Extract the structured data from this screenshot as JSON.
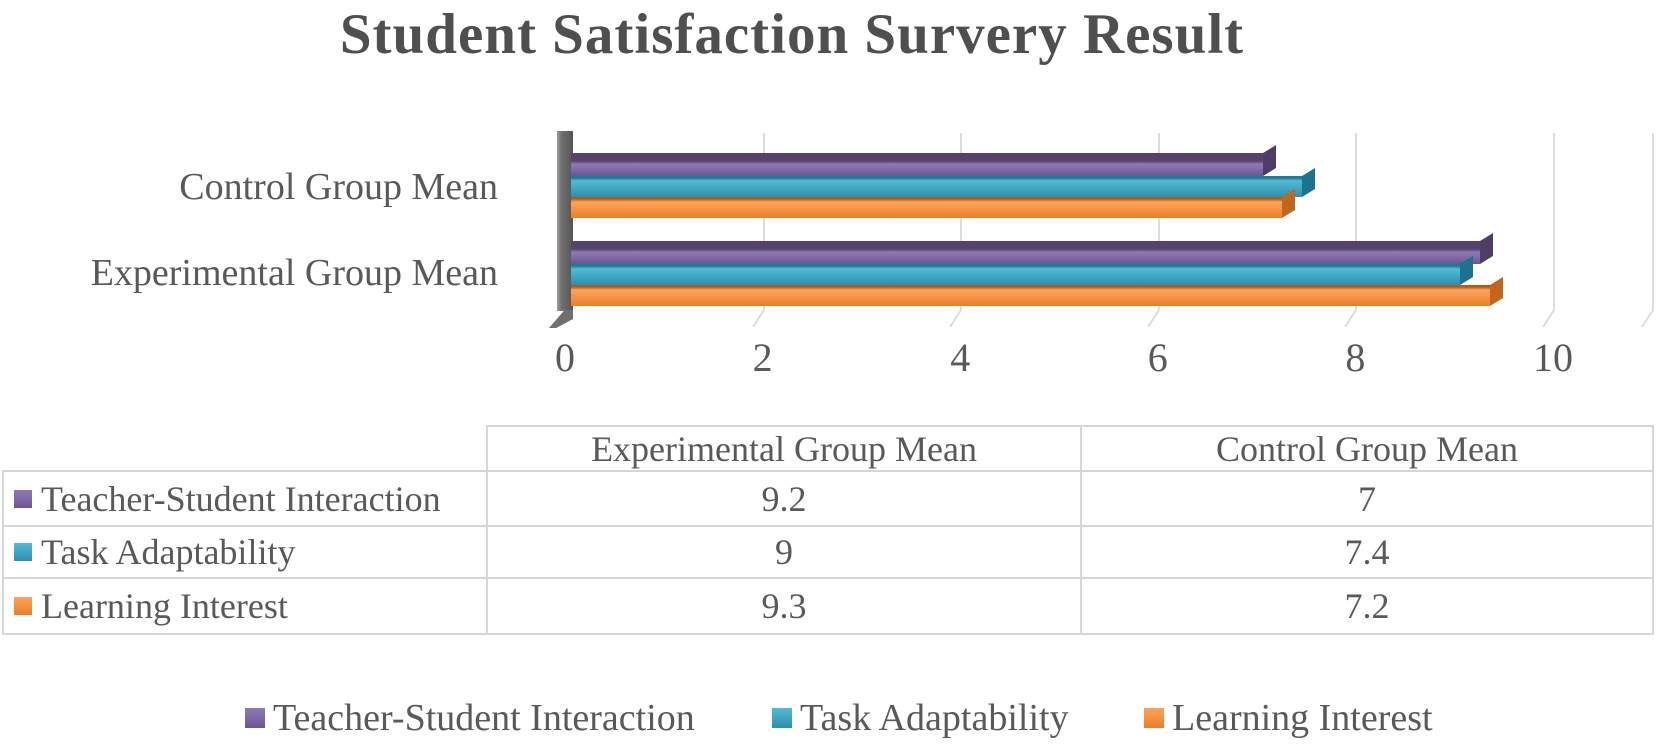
{
  "title": "Student Satisfaction Survery Result",
  "chart_data": {
    "type": "bar",
    "orientation": "horizontal",
    "style": "3d",
    "title": "Student Satisfaction Survery Result",
    "categories": [
      "Control Group Mean",
      "Experimental Group Mean"
    ],
    "series": [
      {
        "name": "Teacher-Student Interaction",
        "values": [
          7,
          9.2
        ],
        "color": "#7a63a5",
        "color_light": "#8f7ab6",
        "color_body_bottom": "#6b5494",
        "color_dark": "#56436d",
        "color_cap": "#4e3d66"
      },
      {
        "name": "Task Adaptability",
        "values": [
          7.4,
          9
        ],
        "color": "#3fa9c6",
        "color_light": "#55bad3",
        "color_body_bottom": "#2b90ae",
        "color_dark": "#1e7b97",
        "color_cap": "#1a7491"
      },
      {
        "name": "Learning Interest",
        "values": [
          7.2,
          9.3
        ],
        "color": "#f2913f",
        "color_light": "#fba45c",
        "color_body_bottom": "#ec7d29",
        "color_dark": "#b05c16",
        "color_cap": "#c3661d"
      }
    ],
    "xlim": [
      0,
      10
    ],
    "x_ticks": [
      0,
      2,
      4,
      6,
      8,
      10
    ],
    "grid": true,
    "legend_position": "bottom",
    "axis_text_color": "#595959",
    "gridline_color": "#dcdcdc"
  },
  "table": {
    "columns": [
      "Experimental Group Mean",
      "Control Group Mean"
    ],
    "rows": [
      {
        "label": "Teacher-Student Interaction",
        "values": [
          "9.2",
          "7"
        ]
      },
      {
        "label": "Task Adaptability",
        "values": [
          "9",
          "7.4"
        ]
      },
      {
        "label": "Learning Interest",
        "values": [
          "9.3",
          "7.2"
        ]
      }
    ],
    "border_color": "#d6d6d6"
  }
}
